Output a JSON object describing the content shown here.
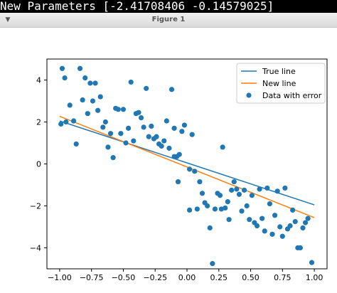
{
  "terminal": {
    "text": "New Parameters [-2.41708406 -0.14579025]"
  },
  "window": {
    "title": "Figure 1",
    "menu_icon": "chevron-down-icon"
  },
  "chart_data": {
    "type": "scatter",
    "xlim": [
      -1.1,
      1.1
    ],
    "ylim": [
      -5.0,
      5.0
    ],
    "xticks": [
      -1.0,
      -0.75,
      -0.5,
      -0.25,
      0.0,
      0.25,
      0.5,
      0.75,
      1.0
    ],
    "xtick_labels": [
      "−1.00",
      "−0.75",
      "−0.50",
      "−0.25",
      "0.00",
      "0.25",
      "0.50",
      "0.75",
      "1.00"
    ],
    "yticks": [
      -4,
      -2,
      0,
      2,
      4
    ],
    "ytick_labels": [
      "−4",
      "−2",
      "0",
      "2",
      "4"
    ],
    "grid": false,
    "legend_position": "top-right",
    "colors": {
      "true_line": "#1f77b4",
      "new_line": "#ff7f0e",
      "points": "#1f77b4"
    },
    "lines": [
      {
        "name": "True line",
        "color": "#1f77b4",
        "x": [
          -1.0,
          1.0
        ],
        "y": [
          2.05,
          -1.95
        ]
      },
      {
        "name": "New line",
        "color": "#ff7f0e",
        "x": [
          -1.0,
          1.0
        ],
        "y": [
          2.27,
          -2.56
        ]
      }
    ],
    "scatter": {
      "name": "Data with error",
      "color": "#1f77b4",
      "points": [
        [
          -0.98,
          4.55
        ],
        [
          -0.96,
          4.1
        ],
        [
          -0.99,
          1.9
        ],
        [
          -0.95,
          2.0
        ],
        [
          -0.92,
          2.8
        ],
        [
          -0.89,
          2.05
        ],
        [
          -0.87,
          0.95
        ],
        [
          -0.84,
          4.55
        ],
        [
          -0.82,
          3.05
        ],
        [
          -0.8,
          4.1
        ],
        [
          -0.78,
          2.4
        ],
        [
          -0.76,
          3.85
        ],
        [
          -0.74,
          3.0
        ],
        [
          -0.72,
          3.85
        ],
        [
          -0.7,
          2.55
        ],
        [
          -0.68,
          3.2
        ],
        [
          -0.66,
          1.75
        ],
        [
          -0.64,
          2.0
        ],
        [
          -0.62,
          0.8
        ],
        [
          -0.6,
          1.45
        ],
        [
          -0.58,
          0.3
        ],
        [
          -0.56,
          2.65
        ],
        [
          -0.54,
          2.6
        ],
        [
          -0.52,
          1.45
        ],
        [
          -0.5,
          2.6
        ],
        [
          -0.48,
          1.0
        ],
        [
          -0.46,
          1.7
        ],
        [
          -0.44,
          3.9
        ],
        [
          -0.42,
          1.1
        ],
        [
          -0.4,
          2.4
        ],
        [
          -0.38,
          2.45
        ],
        [
          -0.36,
          2.2
        ],
        [
          -0.34,
          1.75
        ],
        [
          -0.32,
          3.6
        ],
        [
          -0.3,
          1.3
        ],
        [
          -0.28,
          1.8
        ],
        [
          -0.26,
          1.2
        ],
        [
          -0.24,
          1.3
        ],
        [
          -0.22,
          0.95
        ],
        [
          -0.2,
          0.85
        ],
        [
          -0.18,
          1.1
        ],
        [
          -0.16,
          2.05
        ],
        [
          -0.14,
          0.75
        ],
        [
          -0.12,
          3.55
        ],
        [
          -0.1,
          1.7
        ],
        [
          -0.08,
          0.35
        ],
        [
          -0.06,
          0.45
        ],
        [
          -0.04,
          1.55
        ],
        [
          -0.02,
          1.85
        ],
        [
          -0.07,
          -0.85
        ],
        [
          -0.1,
          0.35
        ],
        [
          0.02,
          -0.25
        ],
        [
          0.02,
          -2.2
        ],
        [
          0.04,
          1.4
        ],
        [
          0.06,
          -0.35
        ],
        [
          0.08,
          -2.15
        ],
        [
          0.1,
          -0.85
        ],
        [
          0.12,
          -1.4
        ],
        [
          0.14,
          -1.85
        ],
        [
          0.16,
          -2.0
        ],
        [
          0.18,
          -3.05
        ],
        [
          0.2,
          -4.75
        ],
        [
          0.22,
          -2.15
        ],
        [
          0.24,
          -1.4
        ],
        [
          0.26,
          -1.5
        ],
        [
          0.27,
          -2.15
        ],
        [
          0.28,
          0.8
        ],
        [
          0.3,
          -2.1
        ],
        [
          0.32,
          -1.8
        ],
        [
          0.33,
          -2.65
        ],
        [
          0.35,
          -1.25
        ],
        [
          0.37,
          -0.85
        ],
        [
          0.39,
          -1.2
        ],
        [
          0.41,
          -1.45
        ],
        [
          0.43,
          -2.25
        ],
        [
          0.45,
          -1.25
        ],
        [
          0.47,
          -2.0
        ],
        [
          0.49,
          -2.65
        ],
        [
          0.51,
          -1.5
        ],
        [
          0.53,
          -2.8
        ],
        [
          0.55,
          -2.95
        ],
        [
          0.57,
          -1.2
        ],
        [
          0.59,
          -2.6
        ],
        [
          0.61,
          -3.2
        ],
        [
          0.63,
          -1.15
        ],
        [
          0.65,
          -1.9
        ],
        [
          0.67,
          -3.35
        ],
        [
          0.69,
          -2.45
        ],
        [
          0.71,
          -1.3
        ],
        [
          0.73,
          -3.0
        ],
        [
          0.75,
          -3.45
        ],
        [
          0.77,
          -1.15
        ],
        [
          0.79,
          -3.1
        ],
        [
          0.81,
          -2.95
        ],
        [
          0.83,
          -2.2
        ],
        [
          0.85,
          -2.75
        ],
        [
          0.87,
          -4.0
        ],
        [
          0.89,
          -4.0
        ],
        [
          0.91,
          -3.05
        ],
        [
          0.93,
          -2.8
        ],
        [
          0.95,
          -2.6
        ],
        [
          0.98,
          -4.7
        ]
      ]
    },
    "legend": [
      {
        "label": "True line",
        "kind": "line",
        "color": "#1f77b4"
      },
      {
        "label": "New line",
        "kind": "line",
        "color": "#ff7f0e"
      },
      {
        "label": "Data with error",
        "kind": "marker",
        "color": "#1f77b4"
      }
    ]
  }
}
